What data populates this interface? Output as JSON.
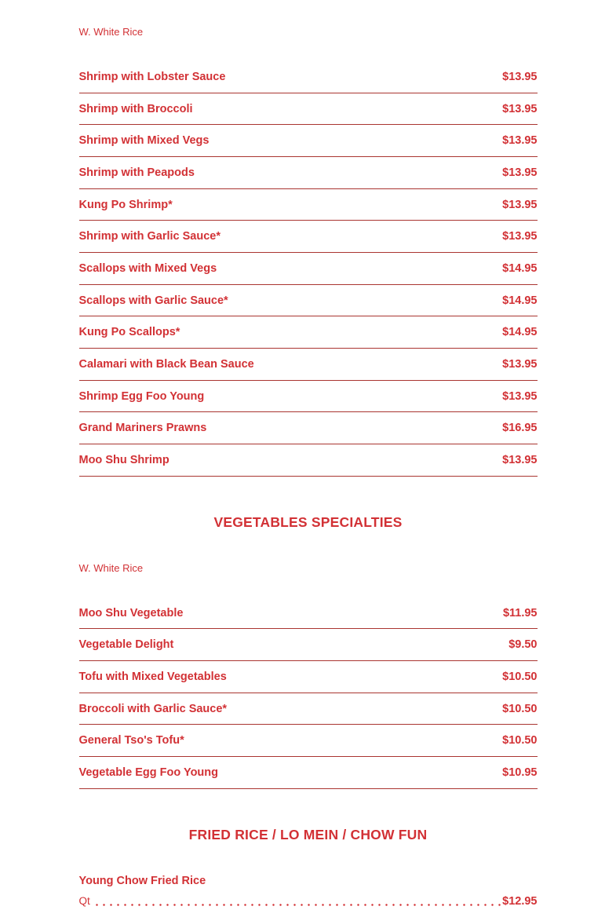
{
  "page": {
    "background": "#ffffff",
    "text_red": "#d23135",
    "divider_red": "#aa3531"
  },
  "menu": {
    "sections": [
      {
        "title": "",
        "note": "W. White Rice",
        "items": [
          {
            "name": "Shrimp with Lobster Sauce",
            "price": "$13.95"
          },
          {
            "name": "Shrimp with Broccoli",
            "price": "$13.95"
          },
          {
            "name": "Shrimp with Mixed Vegs",
            "price": "$13.95"
          },
          {
            "name": "Shrimp with Peapods",
            "price": "$13.95"
          },
          {
            "name": "Kung Po Shrimp*",
            "price": "$13.95"
          },
          {
            "name": "Shrimp with Garlic Sauce*",
            "price": "$13.95"
          },
          {
            "name": "Scallops with Mixed Vegs",
            "price": "$14.95"
          },
          {
            "name": "Scallops with Garlic Sauce*",
            "price": "$14.95"
          },
          {
            "name": "Kung Po Scallops*",
            "price": "$14.95"
          },
          {
            "name": "Calamari with Black Bean Sauce",
            "price": "$13.95"
          },
          {
            "name": "Shrimp Egg Foo Young",
            "price": "$13.95"
          },
          {
            "name": "Grand Mariners Prawns",
            "price": "$16.95"
          },
          {
            "name": "Moo Shu Shrimp",
            "price": "$13.95"
          }
        ]
      },
      {
        "title": "VEGETABLES SPECIALTIES",
        "note": "W. White Rice",
        "items": [
          {
            "name": "Moo Shu Vegetable",
            "price": "$11.95"
          },
          {
            "name": "Vegetable Delight",
            "price": "$9.50"
          },
          {
            "name": "Tofu with Mixed Vegetables",
            "price": "$10.50"
          },
          {
            "name": "Broccoli with Garlic Sauce*",
            "price": "$10.50"
          },
          {
            "name": "General Tso's Tofu*",
            "price": "$10.50"
          },
          {
            "name": "Vegetable Egg Foo Young",
            "price": "$10.95"
          }
        ]
      },
      {
        "title": "FRIED RICE / LO MEIN / CHOW FUN",
        "note": "",
        "items": [
          {
            "name": "Young Chow Fried Rice",
            "variants": [
              {
                "label": "Qt",
                "price": "$12.95"
              }
            ]
          }
        ]
      }
    ]
  }
}
